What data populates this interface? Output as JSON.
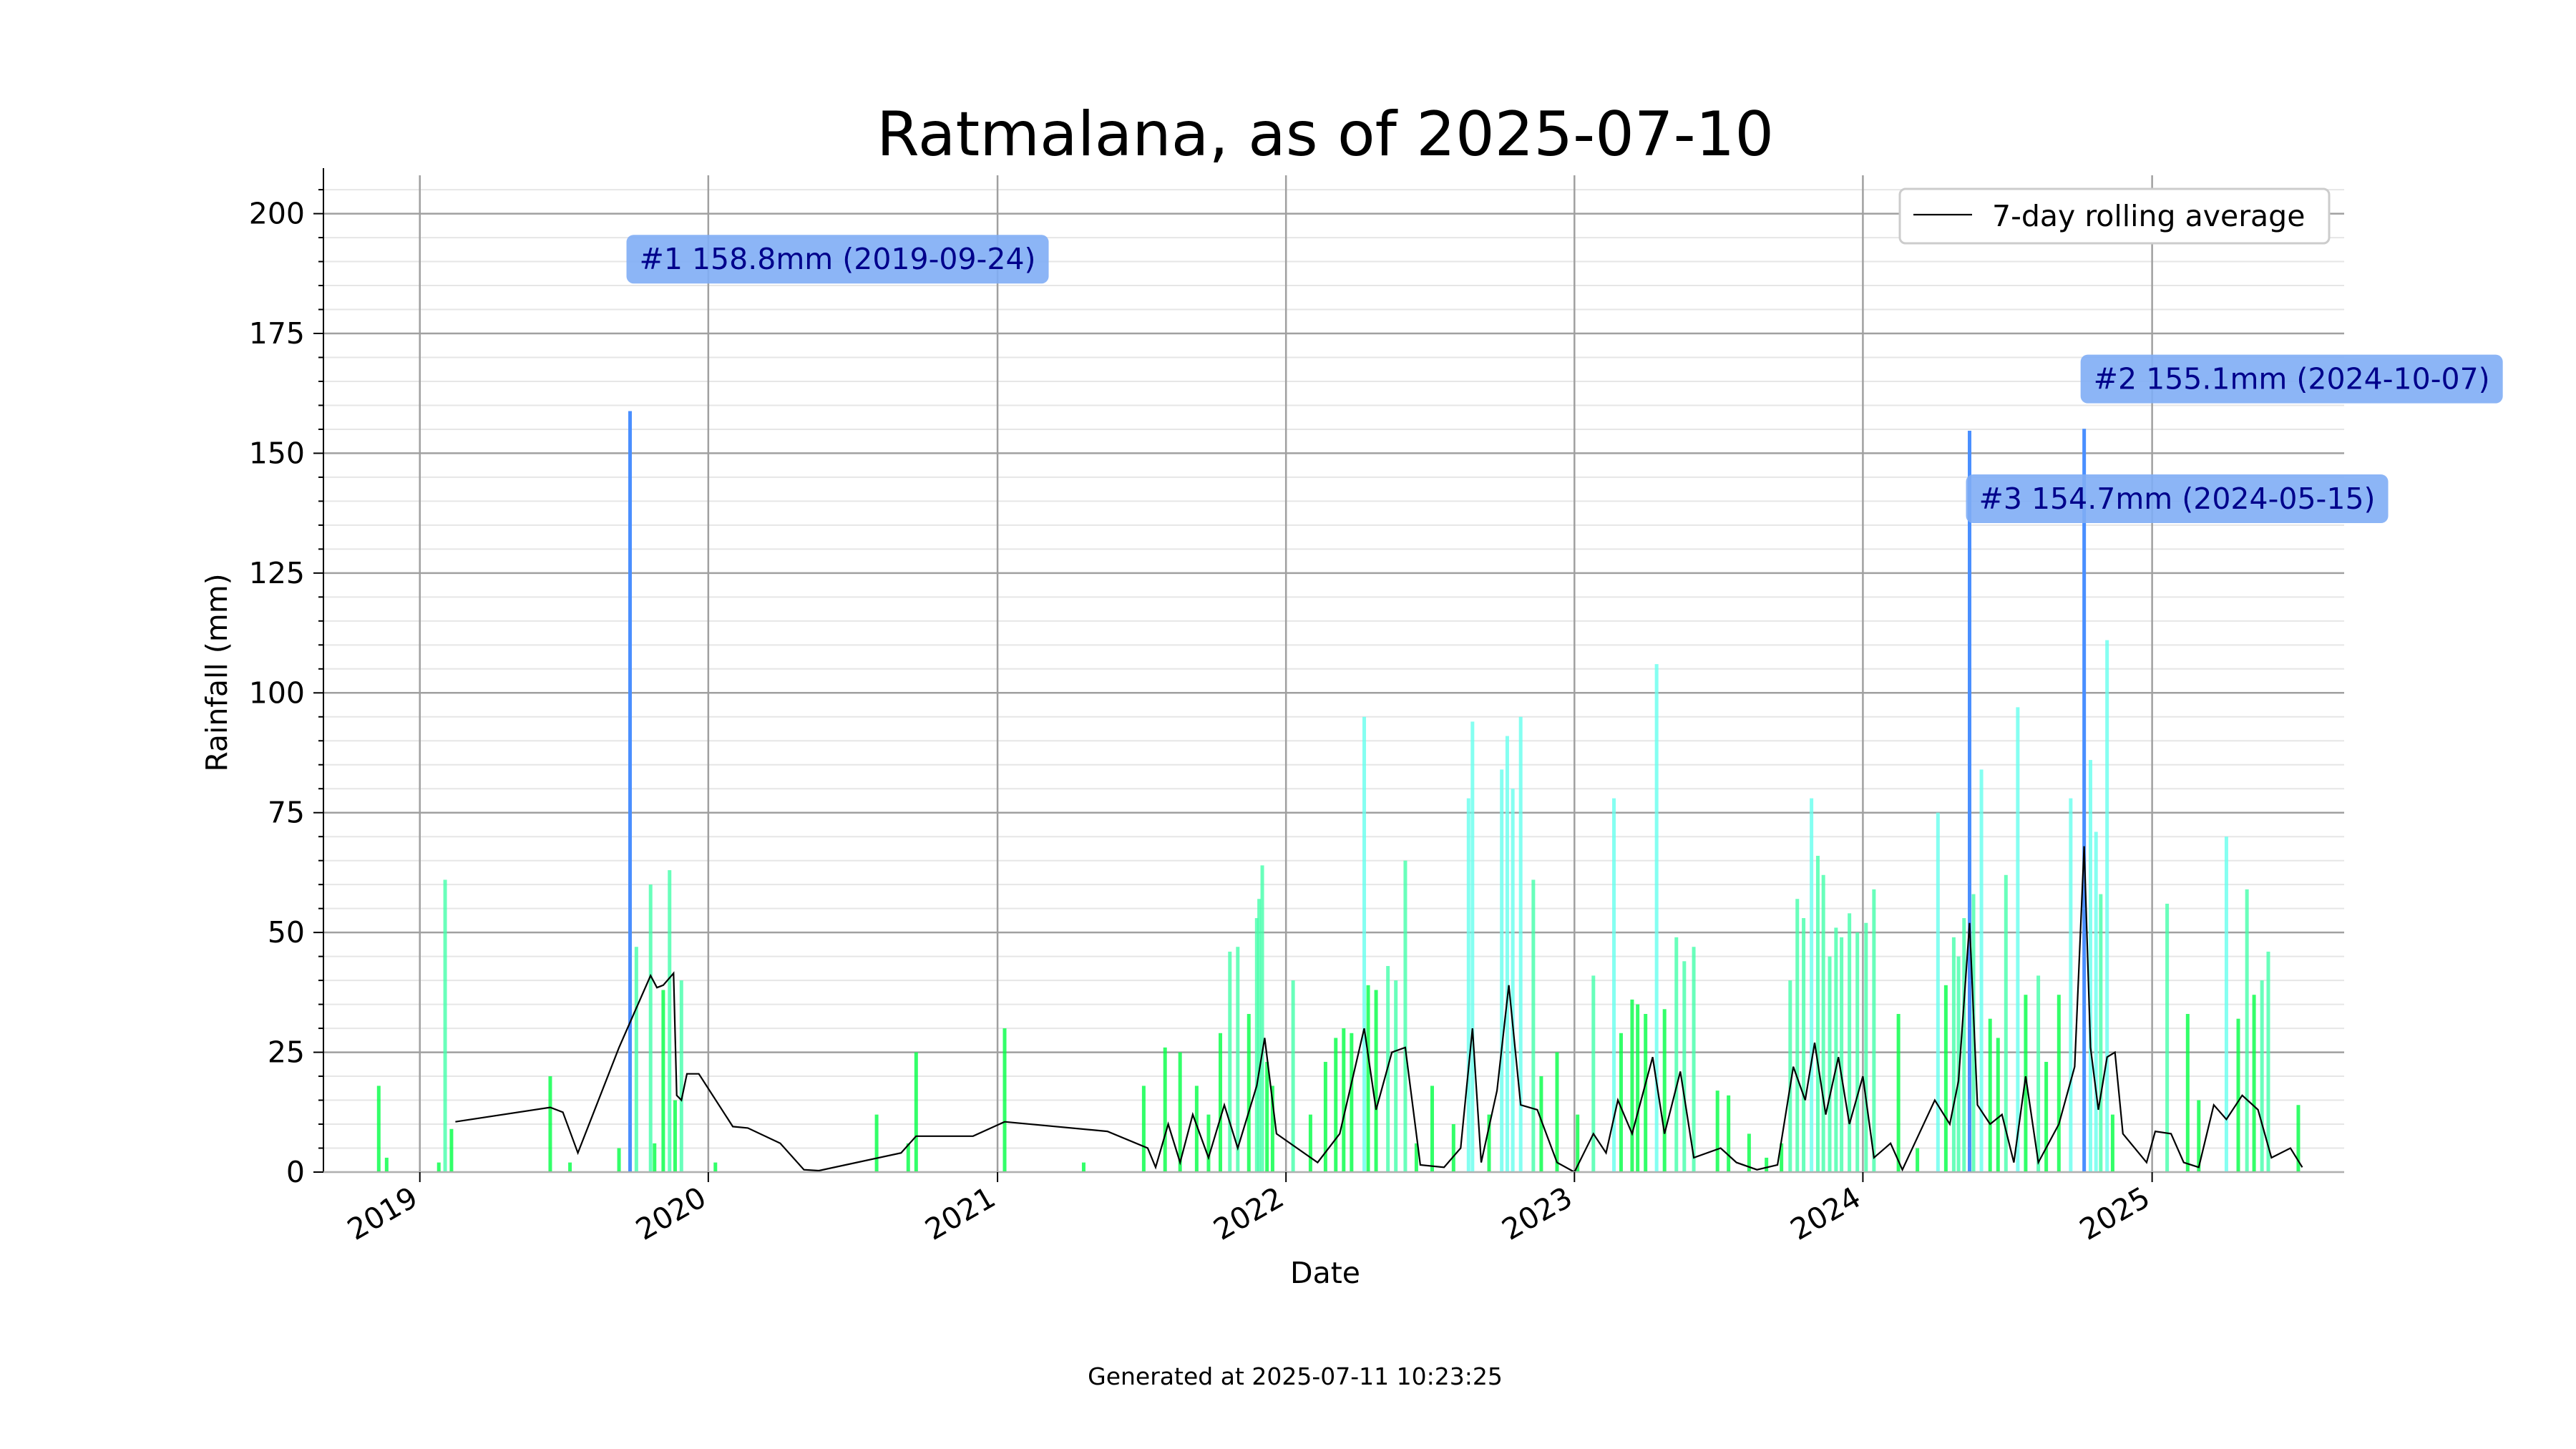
{
  "chart_data": {
    "type": "bar",
    "title": "Ratmalana, as of 2025-07-10",
    "xlabel": "Date",
    "ylabel": "Rainfall (mm)",
    "ylim": [
      0,
      208
    ],
    "xlim": [
      "2018-09-01",
      "2025-09-01"
    ],
    "y_ticks": [
      0,
      25,
      50,
      75,
      100,
      125,
      150,
      175,
      200
    ],
    "x_ticks": [
      "2019",
      "2020",
      "2021",
      "2022",
      "2023",
      "2024",
      "2025"
    ],
    "grid": true,
    "legend": {
      "position": "top-right",
      "entries": [
        "7-day rolling average"
      ]
    },
    "footer": "Generated at 2025-07-11 10:23:25",
    "colors": {
      "low": "#00ff44",
      "high": "#66ffee",
      "top3": "#4a8fff",
      "rolling": "#000000",
      "annotation_bg": "#7fadf5",
      "annotation_text": "#00008b"
    },
    "annotations": [
      {
        "rank": "#1",
        "text": "#1 158.8mm (2019-09-24)",
        "date": "2019-09-24",
        "value": 158.8
      },
      {
        "rank": "#2",
        "text": "#2 155.1mm (2024-10-07)",
        "date": "2024-10-07",
        "value": 155.1
      },
      {
        "rank": "#3",
        "text": "#3 154.7mm (2024-05-15)",
        "date": "2024-05-15",
        "value": 154.7
      }
    ],
    "series": [
      {
        "name": "Daily rainfall",
        "points": [
          [
            "2018-11-10",
            18
          ],
          [
            "2018-11-20",
            3
          ],
          [
            "2019-01-25",
            2
          ],
          [
            "2019-02-02",
            61
          ],
          [
            "2019-02-10",
            9
          ],
          [
            "2019-06-15",
            20
          ],
          [
            "2019-07-10",
            2
          ],
          [
            "2019-09-10",
            5
          ],
          [
            "2019-09-24",
            158.8
          ],
          [
            "2019-10-02",
            47
          ],
          [
            "2019-10-20",
            60
          ],
          [
            "2019-10-25",
            6
          ],
          [
            "2019-11-05",
            38
          ],
          [
            "2019-11-13",
            63
          ],
          [
            "2019-11-20",
            15
          ],
          [
            "2019-11-28",
            40
          ],
          [
            "2020-01-10",
            2
          ],
          [
            "2020-08-01",
            12
          ],
          [
            "2020-09-10",
            6
          ],
          [
            "2020-09-20",
            25
          ],
          [
            "2021-01-10",
            30
          ],
          [
            "2021-04-20",
            2
          ],
          [
            "2021-07-05",
            18
          ],
          [
            "2021-08-01",
            26
          ],
          [
            "2021-08-20",
            25
          ],
          [
            "2021-09-10",
            18
          ],
          [
            "2021-09-25",
            12
          ],
          [
            "2021-10-10",
            29
          ],
          [
            "2021-10-22",
            46
          ],
          [
            "2021-11-01",
            47
          ],
          [
            "2021-11-15",
            33
          ],
          [
            "2021-11-25",
            53
          ],
          [
            "2021-11-28",
            57
          ],
          [
            "2021-12-02",
            64
          ],
          [
            "2021-12-08",
            23
          ],
          [
            "2021-12-15",
            18
          ],
          [
            "2022-01-10",
            40
          ],
          [
            "2022-02-01",
            12
          ],
          [
            "2022-02-20",
            23
          ],
          [
            "2022-03-05",
            28
          ],
          [
            "2022-03-15",
            30
          ],
          [
            "2022-03-25",
            29
          ],
          [
            "2022-04-10",
            95
          ],
          [
            "2022-04-15",
            39
          ],
          [
            "2022-04-25",
            38
          ],
          [
            "2022-05-10",
            43
          ],
          [
            "2022-05-20",
            40
          ],
          [
            "2022-06-01",
            65
          ],
          [
            "2022-06-15",
            6
          ],
          [
            "2022-07-05",
            18
          ],
          [
            "2022-08-01",
            10
          ],
          [
            "2022-08-20",
            78
          ],
          [
            "2022-08-25",
            94
          ],
          [
            "2022-09-15",
            12
          ],
          [
            "2022-10-01",
            84
          ],
          [
            "2022-10-08",
            91
          ],
          [
            "2022-10-15",
            80
          ],
          [
            "2022-10-25",
            95
          ],
          [
            "2022-11-10",
            61
          ],
          [
            "2022-11-20",
            20
          ],
          [
            "2022-12-10",
            25
          ],
          [
            "2023-01-05",
            12
          ],
          [
            "2023-01-25",
            41
          ],
          [
            "2023-02-20",
            78
          ],
          [
            "2023-03-01",
            29
          ],
          [
            "2023-03-15",
            36
          ],
          [
            "2023-03-22",
            35
          ],
          [
            "2023-04-01",
            33
          ],
          [
            "2023-04-15",
            106
          ],
          [
            "2023-04-25",
            34
          ],
          [
            "2023-05-10",
            49
          ],
          [
            "2023-05-20",
            44
          ],
          [
            "2023-06-01",
            47
          ],
          [
            "2023-07-01",
            17
          ],
          [
            "2023-07-15",
            16
          ],
          [
            "2023-08-10",
            8
          ],
          [
            "2023-09-01",
            3
          ],
          [
            "2023-09-20",
            6
          ],
          [
            "2023-10-01",
            40
          ],
          [
            "2023-10-10",
            57
          ],
          [
            "2023-10-18",
            53
          ],
          [
            "2023-10-28",
            78
          ],
          [
            "2023-11-05",
            66
          ],
          [
            "2023-11-12",
            62
          ],
          [
            "2023-11-20",
            45
          ],
          [
            "2023-11-28",
            51
          ],
          [
            "2023-12-05",
            49
          ],
          [
            "2023-12-15",
            54
          ],
          [
            "2023-12-25",
            50
          ],
          [
            "2024-01-05",
            52
          ],
          [
            "2024-01-15",
            59
          ],
          [
            "2024-02-15",
            33
          ],
          [
            "2024-03-10",
            5
          ],
          [
            "2024-04-05",
            75
          ],
          [
            "2024-04-15",
            39
          ],
          [
            "2024-04-25",
            49
          ],
          [
            "2024-05-01",
            45
          ],
          [
            "2024-05-08",
            53
          ],
          [
            "2024-05-15",
            154.7
          ],
          [
            "2024-05-20",
            58
          ],
          [
            "2024-05-30",
            84
          ],
          [
            "2024-06-10",
            32
          ],
          [
            "2024-06-20",
            28
          ],
          [
            "2024-06-30",
            62
          ],
          [
            "2024-07-15",
            97
          ],
          [
            "2024-07-25",
            37
          ],
          [
            "2024-08-10",
            41
          ],
          [
            "2024-08-20",
            23
          ],
          [
            "2024-09-05",
            37
          ],
          [
            "2024-09-20",
            78
          ],
          [
            "2024-10-07",
            155.1
          ],
          [
            "2024-10-15",
            86
          ],
          [
            "2024-10-22",
            71
          ],
          [
            "2024-10-28",
            58
          ],
          [
            "2024-11-05",
            111
          ],
          [
            "2024-11-12",
            12
          ],
          [
            "2025-01-20",
            56
          ],
          [
            "2025-02-15",
            33
          ],
          [
            "2025-03-01",
            15
          ],
          [
            "2025-04-05",
            70
          ],
          [
            "2025-04-20",
            32
          ],
          [
            "2025-05-01",
            59
          ],
          [
            "2025-05-10",
            37
          ],
          [
            "2025-05-20",
            40
          ],
          [
            "2025-05-28",
            46
          ],
          [
            "2025-07-05",
            14
          ]
        ]
      },
      {
        "name": "7-day rolling average",
        "points": [
          [
            "2019-02-15",
            10.5
          ],
          [
            "2019-06-15",
            13.5
          ],
          [
            "2019-07-01",
            12.5
          ],
          [
            "2019-07-20",
            4
          ],
          [
            "2019-09-10",
            26
          ],
          [
            "2019-10-20",
            41
          ],
          [
            "2019-10-28",
            38.5
          ],
          [
            "2019-11-05",
            39
          ],
          [
            "2019-11-18",
            41.5
          ],
          [
            "2019-11-22",
            16
          ],
          [
            "2019-11-28",
            15
          ],
          [
            "2019-12-05",
            20.5
          ],
          [
            "2019-12-20",
            20.5
          ],
          [
            "2020-02-01",
            9.5
          ],
          [
            "2020-02-20",
            9.2
          ],
          [
            "2020-04-01",
            6
          ],
          [
            "2020-05-01",
            0.5
          ],
          [
            "2020-05-20",
            0.3
          ],
          [
            "2020-09-01",
            4
          ],
          [
            "2020-09-20",
            7.5
          ],
          [
            "2020-11-01",
            7.5
          ],
          [
            "2020-12-01",
            7.5
          ],
          [
            "2021-01-10",
            10.5
          ],
          [
            "2021-05-20",
            8.5
          ],
          [
            "2021-07-10",
            5
          ],
          [
            "2021-07-20",
            1
          ],
          [
            "2021-08-05",
            10
          ],
          [
            "2021-08-20",
            2
          ],
          [
            "2021-09-05",
            12
          ],
          [
            "2021-09-25",
            3
          ],
          [
            "2021-10-15",
            14
          ],
          [
            "2021-11-01",
            5
          ],
          [
            "2021-11-25",
            18
          ],
          [
            "2021-12-05",
            28
          ],
          [
            "2021-12-20",
            8
          ],
          [
            "2022-01-15",
            5
          ],
          [
            "2022-02-10",
            2
          ],
          [
            "2022-03-10",
            8
          ],
          [
            "2022-04-10",
            30
          ],
          [
            "2022-04-25",
            13
          ],
          [
            "2022-05-15",
            25
          ],
          [
            "2022-06-01",
            26
          ],
          [
            "2022-06-20",
            1.5
          ],
          [
            "2022-07-20",
            1
          ],
          [
            "2022-08-10",
            5
          ],
          [
            "2022-08-25",
            30
          ],
          [
            "2022-09-05",
            2
          ],
          [
            "2022-09-25",
            17
          ],
          [
            "2022-10-10",
            39
          ],
          [
            "2022-10-25",
            14
          ],
          [
            "2022-11-15",
            13
          ],
          [
            "2022-12-10",
            2
          ],
          [
            "2023-01-01",
            0
          ],
          [
            "2023-01-25",
            8
          ],
          [
            "2023-02-10",
            4
          ],
          [
            "2023-02-25",
            15
          ],
          [
            "2023-03-15",
            8
          ],
          [
            "2023-04-10",
            24
          ],
          [
            "2023-04-25",
            8
          ],
          [
            "2023-05-15",
            21
          ],
          [
            "2023-06-01",
            3
          ],
          [
            "2023-07-05",
            5
          ],
          [
            "2023-07-25",
            2
          ],
          [
            "2023-08-20",
            0.5
          ],
          [
            "2023-09-15",
            1.5
          ],
          [
            "2023-10-05",
            22
          ],
          [
            "2023-10-20",
            15
          ],
          [
            "2023-11-01",
            27
          ],
          [
            "2023-11-15",
            12
          ],
          [
            "2023-12-01",
            24
          ],
          [
            "2023-12-15",
            10
          ],
          [
            "2024-01-01",
            20
          ],
          [
            "2024-01-15",
            3
          ],
          [
            "2024-02-05",
            6
          ],
          [
            "2024-02-20",
            0.5
          ],
          [
            "2024-04-01",
            15
          ],
          [
            "2024-04-20",
            10
          ],
          [
            "2024-05-01",
            19
          ],
          [
            "2024-05-15",
            52
          ],
          [
            "2024-05-25",
            14
          ],
          [
            "2024-06-10",
            10
          ],
          [
            "2024-06-25",
            12
          ],
          [
            "2024-07-10",
            2
          ],
          [
            "2024-07-25",
            20
          ],
          [
            "2024-08-10",
            2
          ],
          [
            "2024-09-05",
            10
          ],
          [
            "2024-09-25",
            22
          ],
          [
            "2024-10-07",
            68
          ],
          [
            "2024-10-15",
            26
          ],
          [
            "2024-10-25",
            13
          ],
          [
            "2024-11-05",
            24
          ],
          [
            "2024-11-15",
            25
          ],
          [
            "2024-11-25",
            8
          ],
          [
            "2024-12-25",
            2
          ],
          [
            "2025-01-05",
            8.5
          ],
          [
            "2025-01-25",
            8
          ],
          [
            "2025-02-10",
            2
          ],
          [
            "2025-03-01",
            1
          ],
          [
            "2025-03-20",
            14
          ],
          [
            "2025-04-05",
            11
          ],
          [
            "2025-04-25",
            16
          ],
          [
            "2025-05-15",
            13
          ],
          [
            "2025-06-01",
            3
          ],
          [
            "2025-06-25",
            5
          ],
          [
            "2025-07-10",
            1
          ]
        ]
      }
    ]
  }
}
